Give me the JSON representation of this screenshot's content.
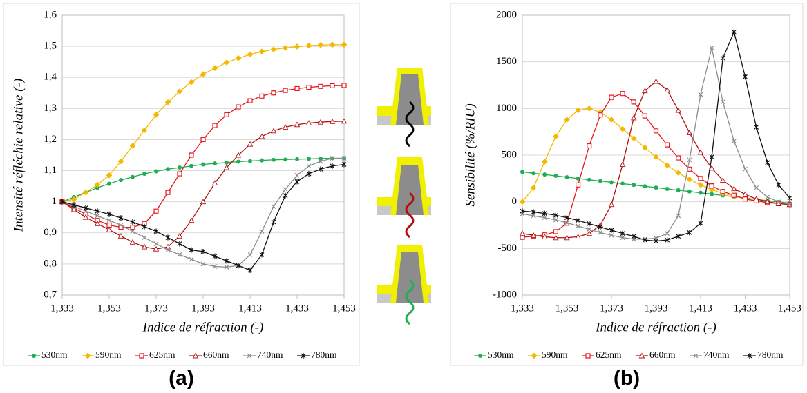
{
  "chart_data": [
    {
      "type": "line",
      "panel_label": "(a)",
      "x_label": "Indice de réfraction (-)",
      "y_label": "Intensité réfléchie relative (-)",
      "x": [
        1.333,
        1.338,
        1.343,
        1.348,
        1.353,
        1.358,
        1.363,
        1.368,
        1.373,
        1.378,
        1.383,
        1.388,
        1.393,
        1.398,
        1.403,
        1.408,
        1.413,
        1.418,
        1.423,
        1.428,
        1.433,
        1.438,
        1.443,
        1.448,
        1.453
      ],
      "xlim": [
        1.333,
        1.453
      ],
      "xticks": [
        {
          "value": 1.333,
          "label": "1,333"
        },
        {
          "value": 1.353,
          "label": "1,353"
        },
        {
          "value": 1.373,
          "label": "1,373"
        },
        {
          "value": 1.393,
          "label": "1,393"
        },
        {
          "value": 1.413,
          "label": "1,413"
        },
        {
          "value": 1.433,
          "label": "1,433"
        },
        {
          "value": 1.453,
          "label": "1,453"
        }
      ],
      "ylim": [
        0.7,
        1.6
      ],
      "yticks": [
        {
          "value": 0.7,
          "label": "0,7"
        },
        {
          "value": 0.8,
          "label": "0,8"
        },
        {
          "value": 0.9,
          "label": "0,9"
        },
        1,
        {
          "value": 1.1,
          "label": "1,1"
        },
        {
          "value": 1.2,
          "label": "1,2"
        },
        {
          "value": 1.3,
          "label": "1,3"
        },
        {
          "value": 1.4,
          "label": "1,4"
        },
        {
          "value": 1.5,
          "label": "1,5"
        },
        {
          "value": 1.6,
          "label": "1,6"
        }
      ],
      "grid": true,
      "legend": "bottom",
      "series": [
        {
          "name": "530nm",
          "color": "#1fae52",
          "marker": "circle",
          "values": [
            1.0,
            1.015,
            1.03,
            1.045,
            1.058,
            1.07,
            1.08,
            1.09,
            1.098,
            1.105,
            1.11,
            1.115,
            1.12,
            1.123,
            1.126,
            1.129,
            1.131,
            1.133,
            1.135,
            1.136,
            1.137,
            1.138,
            1.139,
            1.14,
            1.14
          ]
        },
        {
          "name": "590nm",
          "color": "#f5b800",
          "marker": "diamond",
          "values": [
            1.0,
            1.008,
            1.03,
            1.055,
            1.085,
            1.13,
            1.18,
            1.23,
            1.28,
            1.32,
            1.355,
            1.385,
            1.41,
            1.43,
            1.448,
            1.462,
            1.474,
            1.483,
            1.49,
            1.495,
            1.499,
            1.502,
            1.504,
            1.505,
            1.505
          ]
        },
        {
          "name": "625nm",
          "color": "#e8151b",
          "marker": "square",
          "values": [
            1.0,
            0.98,
            0.96,
            0.94,
            0.925,
            0.918,
            0.918,
            0.93,
            0.97,
            1.03,
            1.09,
            1.15,
            1.2,
            1.245,
            1.28,
            1.305,
            1.325,
            1.34,
            1.35,
            1.358,
            1.364,
            1.368,
            1.371,
            1.373,
            1.374
          ]
        },
        {
          "name": "660nm",
          "color": "#b00e0e",
          "marker": "triangle",
          "values": [
            1.0,
            0.975,
            0.95,
            0.93,
            0.91,
            0.89,
            0.87,
            0.855,
            0.848,
            0.855,
            0.89,
            0.94,
            1.0,
            1.06,
            1.11,
            1.15,
            1.185,
            1.21,
            1.228,
            1.24,
            1.248,
            1.253,
            1.256,
            1.258,
            1.259
          ]
        },
        {
          "name": "740nm",
          "color": "#8c8c8c",
          "marker": "x",
          "values": [
            1.0,
            0.985,
            0.97,
            0.955,
            0.94,
            0.925,
            0.905,
            0.885,
            0.865,
            0.845,
            0.83,
            0.815,
            0.8,
            0.792,
            0.79,
            0.795,
            0.83,
            0.905,
            0.985,
            1.04,
            1.085,
            1.115,
            1.13,
            1.14,
            1.14
          ]
        },
        {
          "name": "780nm",
          "color": "#111111",
          "marker": "star",
          "values": [
            1.0,
            0.99,
            0.98,
            0.97,
            0.96,
            0.948,
            0.935,
            0.92,
            0.905,
            0.885,
            0.865,
            0.845,
            0.84,
            0.825,
            0.81,
            0.795,
            0.78,
            0.83,
            0.935,
            1.02,
            1.065,
            1.09,
            1.105,
            1.115,
            1.12
          ]
        }
      ]
    },
    {
      "type": "line",
      "panel_label": "(b)",
      "x_label": "Indice de réfraction (-)",
      "y_label": "Sensibilité (%/RIU)",
      "x": [
        1.333,
        1.338,
        1.343,
        1.348,
        1.353,
        1.358,
        1.363,
        1.368,
        1.373,
        1.378,
        1.383,
        1.388,
        1.393,
        1.398,
        1.403,
        1.408,
        1.413,
        1.418,
        1.423,
        1.428,
        1.433,
        1.438,
        1.443,
        1.448,
        1.453
      ],
      "xlim": [
        1.333,
        1.453
      ],
      "xticks": [
        {
          "value": 1.333,
          "label": "1,333"
        },
        {
          "value": 1.353,
          "label": "1,353"
        },
        {
          "value": 1.373,
          "label": "1,373"
        },
        {
          "value": 1.393,
          "label": "1,393"
        },
        {
          "value": 1.413,
          "label": "1,413"
        },
        {
          "value": 1.433,
          "label": "1,433"
        },
        {
          "value": 1.453,
          "label": "1,453"
        }
      ],
      "ylim": [
        -1000,
        2000
      ],
      "yticks": [
        -1000,
        -500,
        0,
        500,
        1000,
        1500,
        2000
      ],
      "grid": true,
      "legend": "bottom",
      "series": [
        {
          "name": "530nm",
          "color": "#1fae52",
          "marker": "circle",
          "values": [
            320,
            306,
            292,
            278,
            264,
            250,
            236,
            222,
            208,
            194,
            180,
            166,
            152,
            138,
            124,
            110,
            96,
            82,
            68,
            54,
            40,
            26,
            12,
            -2,
            -16
          ]
        },
        {
          "name": "590nm",
          "color": "#f5b800",
          "marker": "diamond",
          "values": [
            0,
            150,
            430,
            700,
            880,
            980,
            1000,
            960,
            880,
            780,
            680,
            580,
            480,
            390,
            310,
            240,
            180,
            130,
            90,
            60,
            30,
            10,
            -5,
            -15,
            -25
          ]
        },
        {
          "name": "625nm",
          "color": "#e8151b",
          "marker": "square",
          "values": [
            -380,
            -370,
            -355,
            -320,
            -230,
            180,
            600,
            930,
            1120,
            1160,
            1070,
            920,
            760,
            610,
            470,
            350,
            250,
            170,
            110,
            70,
            30,
            10,
            -10,
            -20,
            -30
          ]
        },
        {
          "name": "660nm",
          "color": "#b00e0e",
          "marker": "triangle",
          "values": [
            -340,
            -360,
            -375,
            -385,
            -385,
            -375,
            -340,
            -250,
            -30,
            400,
            900,
            1190,
            1290,
            1200,
            980,
            740,
            530,
            360,
            230,
            140,
            80,
            30,
            0,
            -20,
            -30
          ]
        },
        {
          "name": "740nm",
          "color": "#8c8c8c",
          "marker": "x",
          "values": [
            -130,
            -150,
            -170,
            -195,
            -225,
            -260,
            -295,
            -330,
            -360,
            -385,
            -400,
            -400,
            -390,
            -340,
            -150,
            450,
            1150,
            1650,
            1070,
            650,
            350,
            150,
            50,
            0,
            -30
          ]
        },
        {
          "name": "780nm",
          "color": "#111111",
          "marker": "star",
          "values": [
            -100,
            -110,
            -125,
            -145,
            -170,
            -200,
            -235,
            -270,
            -305,
            -340,
            -370,
            -410,
            -420,
            -410,
            -370,
            -330,
            -230,
            480,
            1540,
            1820,
            1340,
            800,
            420,
            180,
            40
          ]
        }
      ]
    }
  ]
}
